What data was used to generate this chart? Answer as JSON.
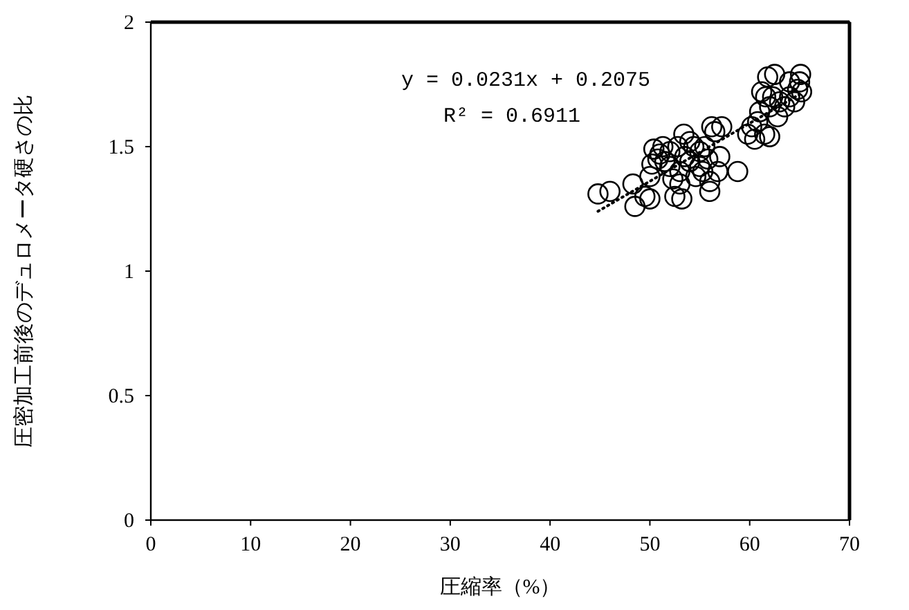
{
  "chart_data": {
    "type": "scatter",
    "xlabel": "圧縮率（%）",
    "ylabel": "圧密加工前後のデュロメータ硬さの比",
    "xlim": [
      0,
      70
    ],
    "ylim": [
      0,
      2
    ],
    "xticks": [
      0,
      10,
      20,
      30,
      40,
      50,
      60,
      70
    ],
    "yticks": [
      0,
      0.5,
      1,
      1.5,
      2
    ],
    "grid": false,
    "annotations": [
      "y = 0.0231x + 0.2075",
      "R² = 0.6911"
    ],
    "series": [
      {
        "color": "#000000",
        "marker": "circle",
        "x": [
          44.8,
          46,
          48.5,
          48.3,
          49.5,
          50,
          50,
          50.2,
          50.4,
          50.8,
          51,
          51.3,
          51.5,
          52,
          52,
          52.3,
          52.5,
          52.8,
          53,
          53,
          53.2,
          53.4,
          53.5,
          54,
          54,
          54.4,
          54.6,
          55,
          55,
          55.3,
          55.5,
          55.8,
          56,
          56,
          56.2,
          56.5,
          56.8,
          57,
          57.2,
          58.8,
          59.8,
          60.2,
          60.5,
          60.8,
          61,
          61.2,
          61.5,
          61.6,
          61.8,
          62,
          62,
          62.3,
          62.5,
          62.8,
          63,
          63.5,
          64,
          64,
          64.5,
          64.8,
          65,
          65.1,
          65.2
        ],
        "values": [
          1.31,
          1.32,
          1.26,
          1.35,
          1.3,
          1.29,
          1.38,
          1.43,
          1.49,
          1.45,
          1.47,
          1.5,
          1.44,
          1.42,
          1.48,
          1.37,
          1.3,
          1.5,
          1.35,
          1.4,
          1.29,
          1.55,
          1.46,
          1.44,
          1.52,
          1.5,
          1.38,
          1.42,
          1.48,
          1.4,
          1.5,
          1.45,
          1.32,
          1.36,
          1.58,
          1.56,
          1.4,
          1.46,
          1.58,
          1.4,
          1.55,
          1.58,
          1.53,
          1.6,
          1.64,
          1.72,
          1.55,
          1.7,
          1.78,
          1.66,
          1.54,
          1.7,
          1.79,
          1.62,
          1.68,
          1.66,
          1.7,
          1.76,
          1.68,
          1.73,
          1.76,
          1.79,
          1.72
        ]
      },
      {
        "type": "line",
        "color": "#000000",
        "line_style": "dotted",
        "marker": "none",
        "x": [
          44.8,
          65
        ],
        "values": [
          1.24,
          1.71
        ]
      }
    ]
  }
}
